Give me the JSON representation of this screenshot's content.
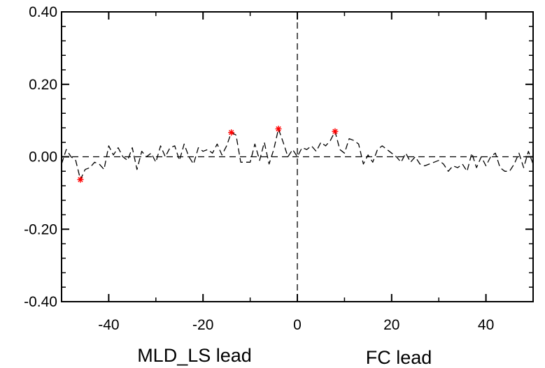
{
  "chart_data": {
    "type": "line",
    "title": "",
    "xlabel": "",
    "ylabel": "",
    "x_captions": {
      "left": "MLD_LS lead",
      "right": "FC lead"
    },
    "xlim": [
      -50,
      50
    ],
    "ylim": [
      -0.4,
      0.4
    ],
    "x_ticks": [
      -40,
      -20,
      0,
      20,
      40
    ],
    "x_tick_labels": [
      "-40",
      "-20",
      "0",
      "20",
      "40"
    ],
    "y_ticks": [
      -0.4,
      -0.2,
      0.0,
      0.2,
      0.4
    ],
    "y_tick_labels": [
      "-0.40",
      "-0.20",
      "0.00",
      "0.20",
      "0.40"
    ],
    "grid": false,
    "reference_lines": {
      "y": 0,
      "x": 0,
      "style": "dashed"
    },
    "series": [
      {
        "style": "dashed",
        "color": "#000000",
        "x": [
          -50,
          -49,
          -48,
          -47,
          -46,
          -45,
          -44,
          -43,
          -42,
          -41,
          -40,
          -39,
          -38,
          -37,
          -36,
          -35,
          -34,
          -33,
          -32,
          -31,
          -30,
          -29,
          -28,
          -27,
          -26,
          -25,
          -24,
          -23,
          -22,
          -21,
          -20,
          -19,
          -18,
          -17,
          -16,
          -15,
          -14,
          -13,
          -12,
          -11,
          -10,
          -9,
          -8,
          -7,
          -6,
          -5,
          -4,
          -3,
          -2,
          -1,
          0,
          1,
          2,
          3,
          4,
          5,
          6,
          7,
          8,
          9,
          10,
          11,
          12,
          13,
          14,
          15,
          16,
          17,
          18,
          19,
          20,
          21,
          22,
          23,
          24,
          25,
          26,
          27,
          28,
          29,
          30,
          31,
          32,
          33,
          34,
          35,
          36,
          37,
          38,
          39,
          40,
          41,
          42,
          43,
          44,
          45,
          46,
          47,
          48,
          49,
          50
        ],
        "y": [
          -0.02,
          0.02,
          0.0,
          -0.01,
          -0.063,
          -0.035,
          -0.03,
          -0.015,
          -0.02,
          -0.035,
          0.03,
          0.005,
          0.025,
          0.0,
          -0.01,
          0.025,
          -0.035,
          0.015,
          0.0,
          0.01,
          -0.015,
          0.03,
          0.0,
          0.025,
          0.03,
          -0.01,
          0.035,
          0.0,
          -0.02,
          0.025,
          0.015,
          0.02,
          0.01,
          0.035,
          0.005,
          0.03,
          0.067,
          0.06,
          -0.015,
          -0.015,
          -0.015,
          0.035,
          -0.01,
          0.04,
          -0.02,
          0.02,
          0.077,
          0.04,
          0.0,
          0.02,
          0.0,
          0.025,
          0.02,
          0.03,
          0.015,
          0.04,
          0.03,
          0.045,
          0.07,
          0.02,
          0.01,
          0.05,
          0.045,
          0.035,
          -0.02,
          0.005,
          -0.015,
          0.02,
          0.03,
          0.02,
          0.01,
          0.0,
          -0.015,
          0.01,
          -0.015,
          0.0,
          -0.02,
          -0.025,
          -0.02,
          -0.015,
          -0.01,
          -0.02,
          -0.04,
          -0.025,
          -0.03,
          -0.02,
          -0.04,
          0.01,
          -0.03,
          0.0,
          -0.025,
          0.0,
          0.01,
          -0.03,
          -0.04,
          -0.04,
          -0.02,
          0.01,
          -0.03,
          0.015,
          -0.02
        ]
      }
    ],
    "markers": {
      "symbol": "asterisk",
      "color": "#ff0000",
      "points": [
        {
          "x": -46,
          "y": -0.063
        },
        {
          "x": -14,
          "y": 0.067
        },
        {
          "x": -4,
          "y": 0.077
        },
        {
          "x": 8,
          "y": 0.07
        }
      ]
    }
  }
}
